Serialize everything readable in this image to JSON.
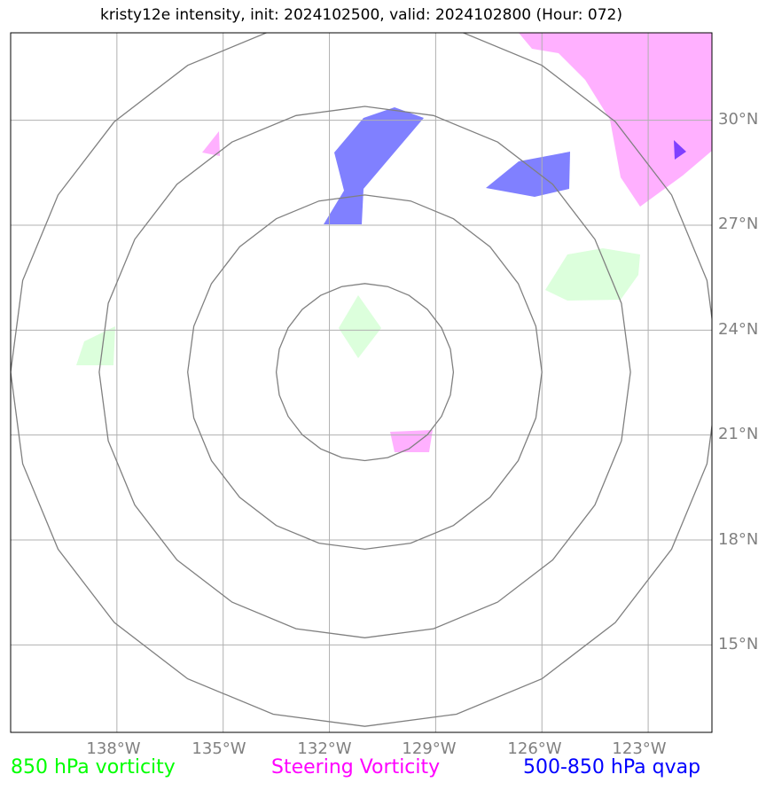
{
  "title": "kristy12e intensity, init: 2024102500, valid: 2024102800 (Hour: 072)",
  "map": {
    "extent": {
      "lon": [
        -141,
        -121.2
      ],
      "lat": [
        12.5,
        32.5
      ]
    },
    "center": {
      "lon": -131,
      "lat": 22.8
    },
    "range_rings_deg": [
      2.5,
      5,
      7.5,
      10
    ],
    "longitude_ticks": [
      "138°W",
      "135°W",
      "132°W",
      "129°W",
      "126°W",
      "123°W"
    ],
    "latitude_ticks": [
      "30°N",
      "27°N",
      "24°N",
      "21°N",
      "18°N",
      "15°N"
    ],
    "colors": {
      "vorticity_850": "#d8ffd8",
      "steering_vorticity": "#ffb0ff",
      "qvap": "#8080ff",
      "grid": "#b0b0b0",
      "rings": "#808080"
    }
  },
  "legend": {
    "vorticity_850": "850 hPa vorticity",
    "steering_vorticity": "Steering Vorticity",
    "qvap": "500-850 hPa qvap"
  }
}
